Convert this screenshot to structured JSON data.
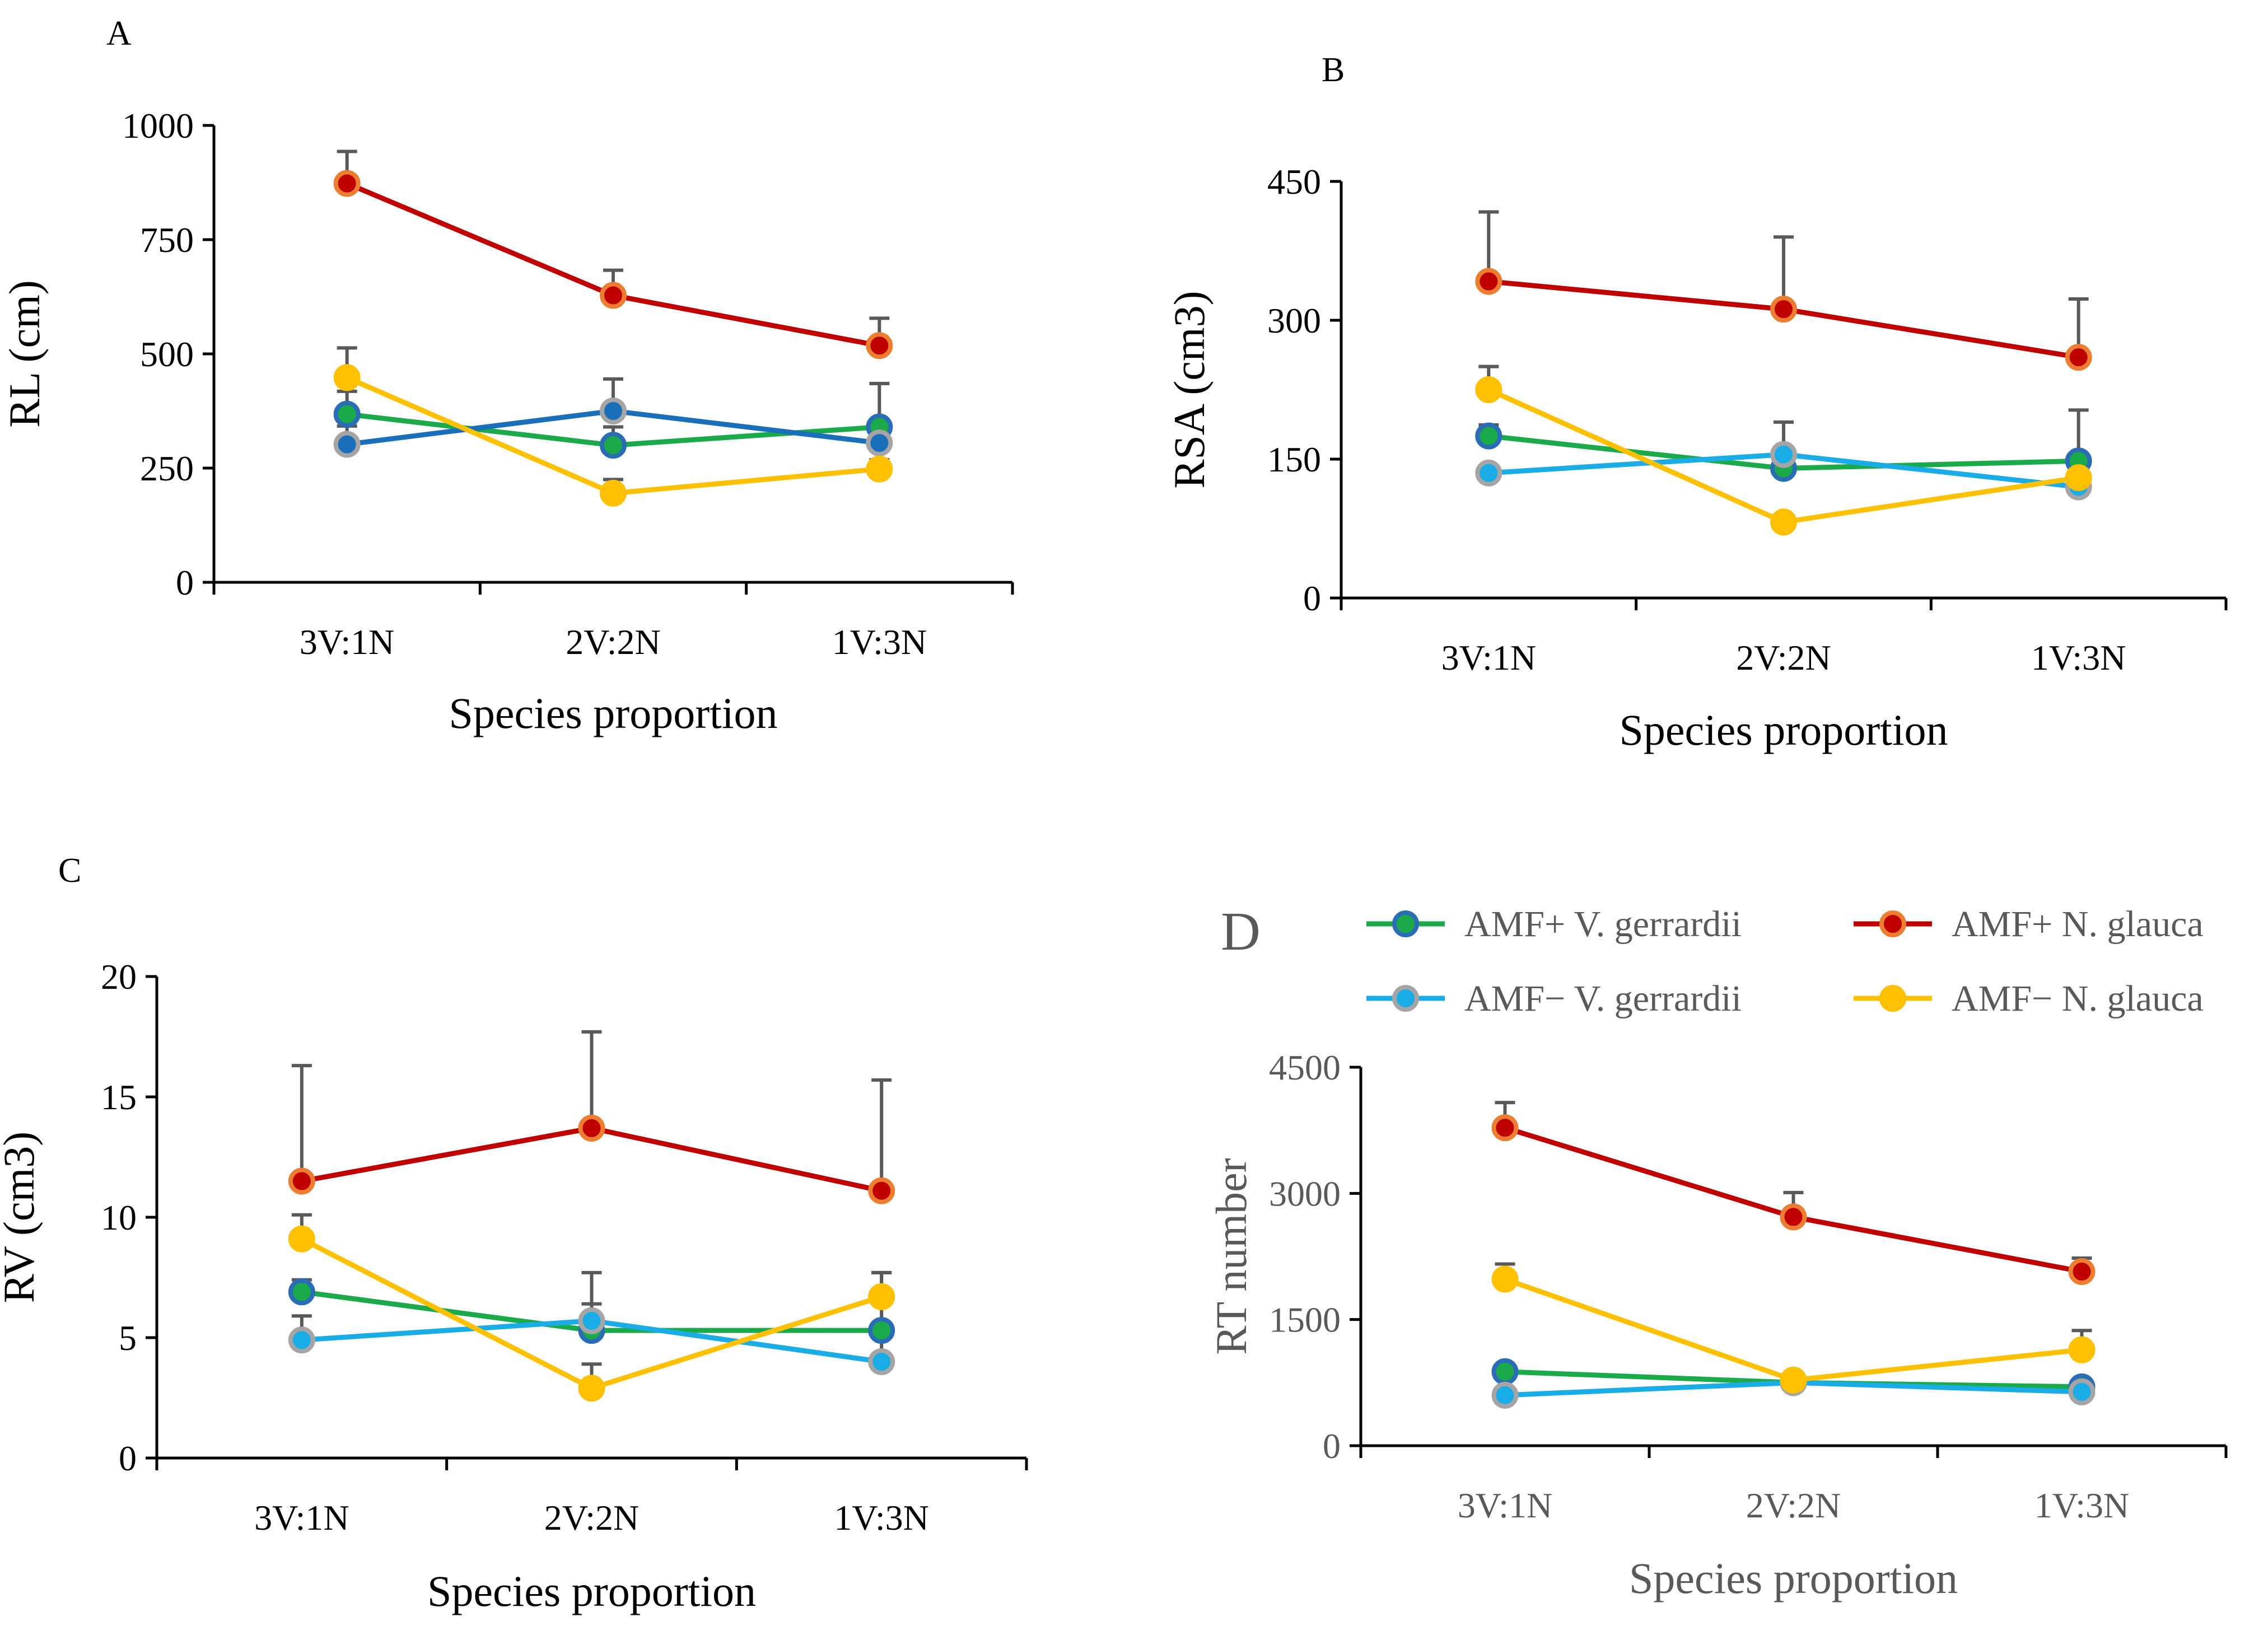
{
  "figure": {
    "legend": [
      {
        "key": "amf_plus_v",
        "label": "AMF+ V. gerrardii",
        "line": "#1aaa4a",
        "fill": "#1aaa4a",
        "edge": "#2a6db5"
      },
      {
        "key": "amf_plus_n",
        "label": "AMF+ N. glauca",
        "line": "#c00000",
        "fill": "#c00000",
        "edge": "#ed7d31"
      },
      {
        "key": "amf_minus_v",
        "label": "AMF− V. gerrardii",
        "line": "#1aace6",
        "fill": "#1aace6",
        "edge": "#a5a5a5"
      },
      {
        "key": "amf_minus_n",
        "label": "AMF− N. glauca",
        "line": "#ffc000",
        "fill": "#ffc000",
        "edge": "#ffc000"
      }
    ]
  },
  "chart_data": [
    {
      "panel": "A",
      "type": "line",
      "ylabel": "RL (cm)",
      "xlabel": "Species proportion",
      "categories": [
        "3V:1N",
        "2V:2N",
        "1V:3N"
      ],
      "ylim": [
        0,
        1000
      ],
      "yticks": [
        0,
        250,
        500,
        750,
        1000
      ],
      "yticklabels": [
        "0",
        "250",
        "500",
        "750",
        "1000"
      ],
      "series": [
        {
          "name": "AMF+ V. gerrardii",
          "line": "#1aaa4a",
          "fill": "#1aaa4a",
          "edge": "#2a6db5",
          "values": [
            368,
            300,
            340
          ],
          "errors": [
            50,
            40,
            95
          ]
        },
        {
          "name": "AMF− V. gerrardii",
          "line": "#1a6fba",
          "fill": "#1a6fba",
          "edge": "#a5a5a5",
          "values": [
            302,
            375,
            305
          ],
          "errors": [
            40,
            70,
            50
          ]
        },
        {
          "name": "AMF− N. glauca",
          "line": "#ffc000",
          "fill": "#ffc000",
          "edge": "#ffc000",
          "values": [
            448,
            195,
            248
          ],
          "errors": [
            65,
            30,
            20
          ]
        },
        {
          "name": "AMF+ N. glauca",
          "line": "#c00000",
          "fill": "#c00000",
          "edge": "#ed7d31",
          "values": [
            873,
            628,
            518
          ],
          "errors": [
            70,
            55,
            60
          ]
        }
      ]
    },
    {
      "panel": "B",
      "type": "line",
      "ylabel": "RSA (cm3)",
      "xlabel": "Species proportion",
      "categories": [
        "3V:1N",
        "2V:2N",
        "1V:3N"
      ],
      "ylim": [
        0,
        450
      ],
      "yticks": [
        0,
        150,
        300,
        450
      ],
      "yticklabels": [
        "0",
        "150",
        "300",
        "450"
      ],
      "series": [
        {
          "name": "AMF+ V. gerrardii",
          "line": "#1aaa4a",
          "fill": "#1aaa4a",
          "edge": "#2a6db5",
          "values": [
            175,
            140,
            148
          ],
          "errors": [
            12,
            10,
            55
          ]
        },
        {
          "name": "AMF− V. gerrardii",
          "line": "#1aace6",
          "fill": "#1aace6",
          "edge": "#a5a5a5",
          "values": [
            135,
            155,
            120
          ],
          "errors": [
            8,
            35,
            10
          ]
        },
        {
          "name": "AMF− N. glauca",
          "line": "#ffc000",
          "fill": "#ffc000",
          "edge": "#ffc000",
          "values": [
            225,
            82,
            130
          ],
          "errors": [
            25,
            5,
            5
          ]
        },
        {
          "name": "AMF+ N. glauca",
          "line": "#c00000",
          "fill": "#c00000",
          "edge": "#ed7d31",
          "values": [
            342,
            312,
            260
          ],
          "errors": [
            75,
            78,
            63
          ]
        }
      ]
    },
    {
      "panel": "C",
      "type": "line",
      "ylabel": "RV (cm3)",
      "xlabel": "Species proportion",
      "categories": [
        "3V:1N",
        "2V:2N",
        "1V:3N"
      ],
      "ylim": [
        0,
        20
      ],
      "yticks": [
        0,
        5,
        10,
        15,
        20
      ],
      "yticklabels": [
        "0",
        "5",
        "10",
        "15",
        "20"
      ],
      "series": [
        {
          "name": "AMF+ V. gerrardii",
          "line": "#1aaa4a",
          "fill": "#1aaa4a",
          "edge": "#2a6db5",
          "values": [
            6.9,
            5.3,
            5.3
          ],
          "errors": [
            0.5,
            1.1,
            2.4
          ]
        },
        {
          "name": "AMF− V. gerrardii",
          "line": "#1aace6",
          "fill": "#1aace6",
          "edge": "#a5a5a5",
          "values": [
            4.9,
            5.7,
            4.0
          ],
          "errors": [
            1.0,
            2.0,
            1.0
          ]
        },
        {
          "name": "AMF− N. glauca",
          "line": "#ffc000",
          "fill": "#ffc000",
          "edge": "#ffc000",
          "values": [
            9.1,
            2.9,
            6.7
          ],
          "errors": [
            1.0,
            1.0,
            1.0
          ]
        },
        {
          "name": "AMF+ N. glauca",
          "line": "#c00000",
          "fill": "#c00000",
          "edge": "#ed7d31",
          "values": [
            11.5,
            13.7,
            11.1
          ],
          "errors": [
            4.8,
            4.0,
            4.6
          ]
        }
      ]
    },
    {
      "panel": "D",
      "type": "line",
      "ylabel": "RT number",
      "xlabel": "Species proportion",
      "categories": [
        "3V:1N",
        "2V:2N",
        "1V:3N"
      ],
      "ylim": [
        0,
        4500
      ],
      "yticks": [
        0,
        1500,
        3000,
        4500
      ],
      "yticklabels": [
        "0",
        "1500",
        "3000",
        "4500"
      ],
      "series": [
        {
          "name": "AMF+ V. gerrardii",
          "line": "#1aaa4a",
          "fill": "#1aaa4a",
          "edge": "#2a6db5",
          "values": [
            880,
            750,
            700
          ],
          "errors": [
            40,
            40,
            40
          ]
        },
        {
          "name": "AMF− V. gerrardii",
          "line": "#1aace6",
          "fill": "#1aace6",
          "edge": "#a5a5a5",
          "values": [
            600,
            750,
            640
          ],
          "errors": [
            30,
            40,
            30
          ]
        },
        {
          "name": "AMF− N. glauca",
          "line": "#ffc000",
          "fill": "#ffc000",
          "edge": "#ffc000",
          "values": [
            1980,
            780,
            1140
          ],
          "errors": [
            180,
            80,
            230
          ]
        },
        {
          "name": "AMF+ N. glauca",
          "line": "#c00000",
          "fill": "#c00000",
          "edge": "#ed7d31",
          "values": [
            3780,
            2720,
            2070
          ],
          "errors": [
            300,
            290,
            160
          ]
        }
      ]
    }
  ]
}
